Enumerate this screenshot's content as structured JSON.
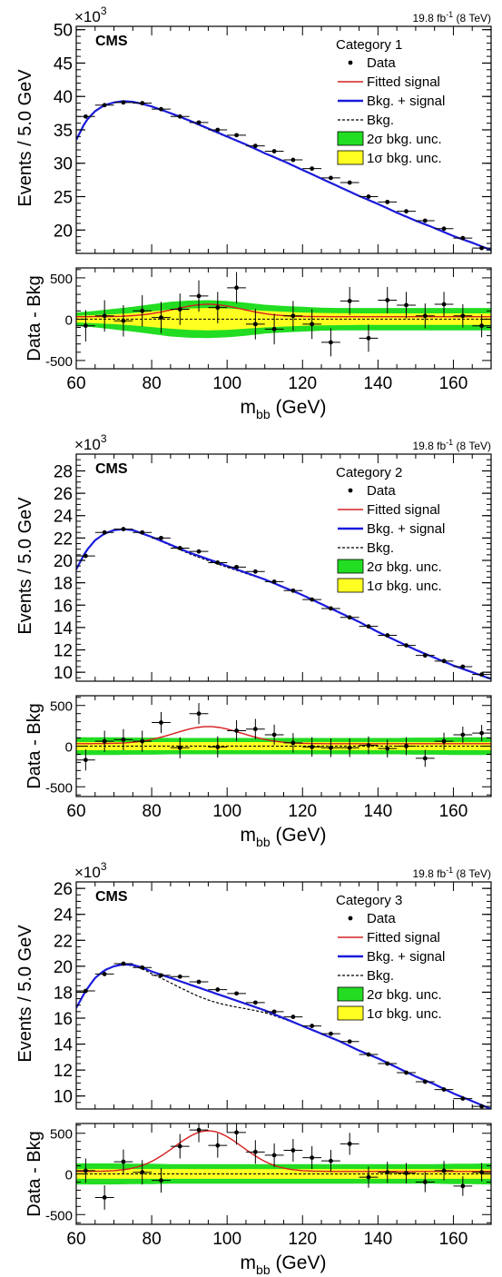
{
  "chart_data": [
    {
      "type": "line",
      "category": "Category 1",
      "experiment": "CMS",
      "lumi_text": "19.8 fb",
      "lumi_exp": "-1",
      "lumi_energy": " (8 TeV)",
      "multiplier": "×10",
      "multiplier_exp": "3",
      "ylabel": "Events / 5.0 GeV",
      "ratio_ylabel": "Data - Bkg",
      "xlabel_main": "m",
      "xlabel_sub": "bb",
      "xlabel_unit": " (GeV)",
      "xlim": [
        60,
        170
      ],
      "ylim": [
        16.5,
        50.5
      ],
      "yticks": [
        20,
        25,
        30,
        35,
        40,
        45,
        50
      ],
      "ratio_ylim": [
        -600,
        620
      ],
      "ratio_yticks": [
        -500,
        0,
        500
      ],
      "xticks": [
        60,
        80,
        100,
        120,
        140,
        160
      ],
      "legend": [
        "Data",
        "Fitted signal",
        "Bkg. + signal",
        "Bkg.",
        "2σ bkg. unc.",
        "1σ bkg. unc."
      ],
      "x": [
        62.5,
        67.5,
        72.5,
        77.5,
        82.5,
        87.5,
        92.5,
        97.5,
        102.5,
        107.5,
        112.5,
        117.5,
        122.5,
        127.5,
        132.5,
        137.5,
        142.5,
        147.5,
        152.5,
        157.5,
        162.5,
        167.5
      ],
      "data": [
        37.0,
        38.7,
        39.1,
        39.0,
        38.1,
        37.0,
        36.1,
        35.0,
        34.2,
        32.6,
        31.8,
        30.5,
        29.2,
        27.8,
        27.1,
        25.0,
        24.2,
        22.8,
        21.4,
        20.2,
        18.8,
        17.3
      ],
      "bkg_curve": [
        [
          60,
          33.5
        ],
        [
          62.5,
          36.3
        ],
        [
          65,
          37.8
        ],
        [
          67.5,
          38.7
        ],
        [
          70,
          39.1
        ],
        [
          72.5,
          39.3
        ],
        [
          75,
          39.2
        ],
        [
          77.5,
          38.9
        ],
        [
          80,
          38.5
        ],
        [
          85,
          37.5
        ],
        [
          90,
          36.4
        ],
        [
          95,
          35.2
        ],
        [
          100,
          34.0
        ],
        [
          105,
          32.8
        ],
        [
          110,
          31.5
        ],
        [
          115,
          30.3
        ],
        [
          120,
          29.0
        ],
        [
          125,
          27.7
        ],
        [
          130,
          26.4
        ],
        [
          135,
          25.1
        ],
        [
          140,
          23.9
        ],
        [
          145,
          22.6
        ],
        [
          150,
          21.4
        ],
        [
          155,
          20.3
        ],
        [
          160,
          19.1
        ],
        [
          165,
          18.1
        ],
        [
          170,
          17.0
        ]
      ],
      "residuals": [
        -80,
        40,
        -20,
        100,
        20,
        120,
        280,
        140,
        380,
        -60,
        -120,
        40,
        -60,
        -280,
        220,
        -230,
        230,
        170,
        40,
        180,
        40,
        -80
      ],
      "residual_err": [
        190,
        190,
        190,
        190,
        190,
        190,
        190,
        190,
        190,
        185,
        185,
        180,
        180,
        170,
        170,
        165,
        160,
        160,
        150,
        150,
        140,
        140
      ],
      "signal_peak": 150,
      "sigma1": [
        40,
        50,
        60,
        75,
        95,
        115,
        130,
        135,
        130,
        115,
        100,
        90,
        80,
        75,
        72,
        70,
        70,
        70,
        70,
        70,
        70,
        70,
        70
      ],
      "sigma2": [
        80,
        100,
        125,
        150,
        180,
        210,
        225,
        230,
        220,
        200,
        175,
        160,
        150,
        140,
        135,
        135,
        135,
        135,
        135,
        135,
        135,
        135,
        135
      ]
    },
    {
      "type": "line",
      "category": "Category 2",
      "experiment": "CMS",
      "lumi_text": "19.8 fb",
      "lumi_exp": "-1",
      "lumi_energy": " (8 TeV)",
      "multiplier": "×10",
      "multiplier_exp": "3",
      "ylabel": "Events / 5.0 GeV",
      "ratio_ylabel": "Data - Bkg",
      "xlabel_main": "m",
      "xlabel_sub": "bb",
      "xlabel_unit": " (GeV)",
      "xlim": [
        60,
        170
      ],
      "ylim": [
        9.2,
        29.5
      ],
      "yticks": [
        10,
        12,
        14,
        16,
        18,
        20,
        22,
        24,
        26,
        28
      ],
      "ratio_ylim": [
        -620,
        620
      ],
      "ratio_yticks": [
        -500,
        0,
        500
      ],
      "xticks": [
        60,
        80,
        100,
        120,
        140,
        160
      ],
      "legend": [
        "Data",
        "Fitted signal",
        "Bkg. + signal",
        "Bkg.",
        "2σ bkg. unc.",
        "1σ bkg. unc."
      ],
      "x": [
        62.5,
        67.5,
        72.5,
        77.5,
        82.5,
        87.5,
        92.5,
        97.5,
        102.5,
        107.5,
        112.5,
        117.5,
        122.5,
        127.5,
        132.5,
        137.5,
        142.5,
        147.5,
        152.5,
        157.5,
        162.5,
        167.5
      ],
      "data": [
        20.4,
        22.5,
        22.8,
        22.5,
        22.0,
        21.1,
        20.8,
        19.8,
        19.4,
        19.0,
        18.1,
        17.3,
        16.5,
        15.7,
        14.9,
        14.1,
        13.3,
        12.4,
        11.5,
        11.0,
        10.5,
        9.8
      ],
      "bkg_curve": [
        [
          60,
          19.2
        ],
        [
          62.5,
          20.8
        ],
        [
          65,
          21.8
        ],
        [
          67.5,
          22.4
        ],
        [
          70,
          22.7
        ],
        [
          72.5,
          22.8
        ],
        [
          75,
          22.7
        ],
        [
          77.5,
          22.4
        ],
        [
          80,
          22.1
        ],
        [
          85,
          21.4
        ],
        [
          90,
          20.7
        ],
        [
          95,
          20.1
        ],
        [
          100,
          19.5
        ],
        [
          105,
          18.9
        ],
        [
          110,
          18.3
        ],
        [
          115,
          17.6
        ],
        [
          120,
          16.9
        ],
        [
          125,
          16.1
        ],
        [
          130,
          15.3
        ],
        [
          135,
          14.5
        ],
        [
          140,
          13.6
        ],
        [
          145,
          12.8
        ],
        [
          150,
          12.0
        ],
        [
          155,
          11.3
        ],
        [
          160,
          10.6
        ],
        [
          165,
          10.0
        ],
        [
          170,
          9.4
        ]
      ],
      "residuals": [
        -170,
        60,
        80,
        60,
        290,
        -20,
        400,
        -10,
        190,
        210,
        140,
        40,
        -10,
        -20,
        -20,
        10,
        -30,
        0,
        -150,
        60,
        140,
        160
      ],
      "residual_err": [
        130,
        130,
        130,
        130,
        130,
        130,
        130,
        130,
        130,
        125,
        125,
        120,
        120,
        115,
        115,
        110,
        110,
        110,
        105,
        105,
        100,
        100
      ],
      "signal_peak": 210,
      "sigma1": [
        50,
        50,
        50,
        50,
        50,
        50,
        50,
        50,
        50,
        50,
        50,
        50,
        50,
        50,
        50,
        50,
        50,
        50,
        50,
        50,
        50,
        50,
        50
      ],
      "sigma2": [
        110,
        110,
        110,
        105,
        105,
        100,
        100,
        100,
        100,
        100,
        100,
        100,
        100,
        100,
        100,
        100,
        100,
        100,
        105,
        105,
        110,
        110,
        110
      ]
    },
    {
      "type": "line",
      "category": "Category 3",
      "experiment": "CMS",
      "lumi_text": "19.8 fb",
      "lumi_exp": "-1",
      "lumi_energy": " (8 TeV)",
      "multiplier": "×10",
      "multiplier_exp": "3",
      "ylabel": "Events / 5.0 GeV",
      "ratio_ylabel": "Data - Bkg",
      "xlabel_main": "m",
      "xlabel_sub": "bb",
      "xlabel_unit": " (GeV)",
      "xlim": [
        60,
        170
      ],
      "ylim": [
        9.0,
        26.5
      ],
      "yticks": [
        10,
        12,
        14,
        16,
        18,
        20,
        22,
        24,
        26
      ],
      "ratio_ylim": [
        -620,
        620
      ],
      "ratio_yticks": [
        -500,
        0,
        500
      ],
      "xticks": [
        60,
        80,
        100,
        120,
        140,
        160
      ],
      "legend": [
        "Data",
        "Fitted signal",
        "Bkg. + signal",
        "Bkg.",
        "2σ bkg. unc.",
        "1σ bkg. unc."
      ],
      "x": [
        62.5,
        67.5,
        72.5,
        77.5,
        82.5,
        87.5,
        92.5,
        97.5,
        102.5,
        107.5,
        112.5,
        117.5,
        122.5,
        127.5,
        132.5,
        137.5,
        142.5,
        147.5,
        152.5,
        157.5,
        162.5,
        167.5
      ],
      "data": [
        18.1,
        19.4,
        20.2,
        19.9,
        19.3,
        19.2,
        18.8,
        18.2,
        17.9,
        17.2,
        16.5,
        16.1,
        15.4,
        14.8,
        14.2,
        13.2,
        12.5,
        11.8,
        11.1,
        10.5,
        9.8,
        9.2
      ],
      "bkg_curve": [
        [
          60,
          16.8
        ],
        [
          62.5,
          18.1
        ],
        [
          65,
          19.1
        ],
        [
          67.5,
          19.7
        ],
        [
          70,
          20.0
        ],
        [
          72.5,
          20.15
        ],
        [
          75,
          20.1
        ],
        [
          77.5,
          19.9
        ],
        [
          80,
          19.6
        ],
        [
          85,
          19.1
        ],
        [
          90,
          18.6
        ],
        [
          95,
          18.1
        ],
        [
          100,
          17.6
        ],
        [
          105,
          17.1
        ],
        [
          110,
          16.6
        ],
        [
          115,
          16.0
        ],
        [
          120,
          15.4
        ],
        [
          125,
          14.8
        ],
        [
          130,
          14.2
        ],
        [
          135,
          13.5
        ],
        [
          140,
          12.9
        ],
        [
          145,
          12.2
        ],
        [
          150,
          11.5
        ],
        [
          155,
          10.9
        ],
        [
          160,
          10.2
        ],
        [
          165,
          9.6
        ],
        [
          170,
          9.0
        ]
      ],
      "residuals": [
        40,
        -290,
        150,
        20,
        -80,
        340,
        540,
        350,
        510,
        270,
        230,
        290,
        200,
        160,
        370,
        -40,
        20,
        10,
        -100,
        40,
        -150,
        20
      ],
      "residual_err": [
        150,
        150,
        150,
        150,
        150,
        150,
        150,
        150,
        150,
        145,
        145,
        140,
        140,
        135,
        135,
        130,
        130,
        125,
        125,
        120,
        120,
        115
      ],
      "signal_peak": 500,
      "sigma1": [
        60,
        60,
        60,
        60,
        60,
        60,
        60,
        60,
        60,
        60,
        60,
        60,
        60,
        60,
        60,
        60,
        60,
        60,
        60,
        60,
        60,
        60,
        60
      ],
      "sigma2": [
        130,
        130,
        130,
        125,
        125,
        120,
        120,
        120,
        120,
        120,
        120,
        120,
        120,
        120,
        120,
        120,
        120,
        120,
        120,
        120,
        125,
        125,
        130
      ]
    }
  ]
}
